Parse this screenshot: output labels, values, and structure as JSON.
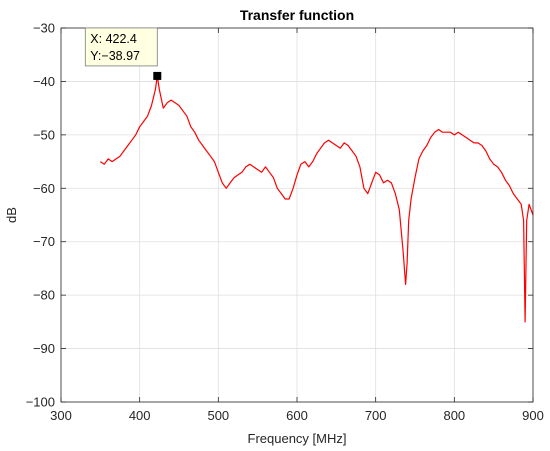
{
  "chart_data": {
    "type": "line",
    "title": "Transfer function",
    "xlabel": "Frequency [MHz]",
    "ylabel": "dB",
    "xlim": [
      300,
      900
    ],
    "ylim": [
      -100,
      -30
    ],
    "xticks": [
      "300",
      "400",
      "500",
      "600",
      "700",
      "800",
      "900"
    ],
    "yticks": [
      "−100",
      "−90",
      "−80",
      "−70",
      "−60",
      "−50",
      "−40",
      "−30"
    ],
    "grid": true,
    "series": [
      {
        "color": "#ff0000",
        "x": [
          350,
          355,
          360,
          365,
          370,
          375,
          380,
          385,
          390,
          395,
          400,
          405,
          410,
          415,
          420,
          422.4,
          425,
          430,
          435,
          440,
          445,
          450,
          455,
          460,
          465,
          470,
          475,
          480,
          485,
          490,
          495,
          500,
          505,
          510,
          515,
          520,
          525,
          530,
          535,
          540,
          545,
          550,
          555,
          560,
          565,
          570,
          575,
          580,
          585,
          590,
          595,
          600,
          605,
          610,
          615,
          620,
          625,
          630,
          635,
          640,
          645,
          650,
          655,
          660,
          665,
          670,
          675,
          680,
          685,
          690,
          695,
          700,
          705,
          710,
          715,
          720,
          725,
          730,
          735,
          738,
          740,
          742,
          745,
          750,
          755,
          760,
          765,
          770,
          775,
          780,
          785,
          790,
          795,
          800,
          805,
          810,
          815,
          820,
          825,
          830,
          835,
          840,
          845,
          850,
          855,
          860,
          865,
          870,
          875,
          880,
          885,
          888,
          890,
          892,
          895,
          900
        ],
        "y": [
          -55,
          -55.5,
          -54.5,
          -55,
          -54.5,
          -54,
          -53,
          -52,
          -51,
          -50,
          -48.5,
          -47.5,
          -46.5,
          -44.5,
          -41.5,
          -38.97,
          -41.5,
          -45,
          -44,
          -43.5,
          -44,
          -44.5,
          -45.5,
          -46.5,
          -48.5,
          -49.5,
          -51,
          -52,
          -53,
          -54,
          -55,
          -57,
          -59,
          -60,
          -59,
          -58,
          -57.5,
          -57,
          -56,
          -55.5,
          -56,
          -56.5,
          -57,
          -56,
          -57,
          -58,
          -60,
          -61,
          -62,
          -62,
          -60,
          -57.5,
          -55.5,
          -55,
          -56,
          -55,
          -53.5,
          -52.5,
          -51.5,
          -51,
          -51.5,
          -52,
          -52.5,
          -51.5,
          -52,
          -53,
          -54,
          -56,
          -60,
          -61,
          -59,
          -57,
          -57.5,
          -59,
          -58.5,
          -59,
          -61,
          -64,
          -72,
          -78,
          -74,
          -66,
          -62,
          -58,
          -54.5,
          -53,
          -52,
          -50.5,
          -49.5,
          -49,
          -49.5,
          -49.5,
          -49.5,
          -50,
          -49.5,
          -50,
          -50.5,
          -51,
          -51.5,
          -51.5,
          -52,
          -53,
          -54.5,
          -55.5,
          -56,
          -57,
          -58.5,
          -59.5,
          -61,
          -62,
          -63,
          -66,
          -85,
          -66,
          -63,
          -65
        ]
      }
    ],
    "datatip": {
      "x_text": "X: 422.4",
      "y_text": "Y:−38.97",
      "x": 422.4,
      "y": -38.97
    }
  }
}
